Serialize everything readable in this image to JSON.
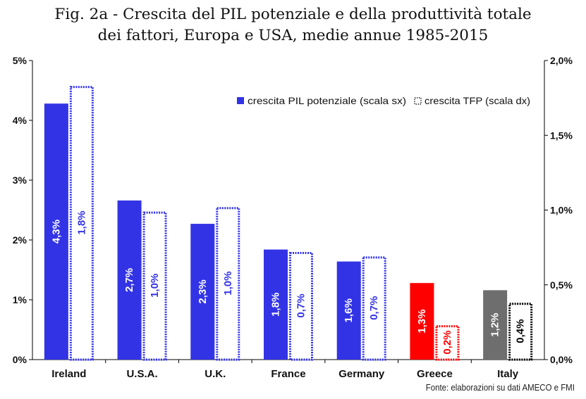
{
  "title_line1": "Fig. 2a - Crescita del PIL potenziale e della produttività totale",
  "title_line2": "dei fattori, Europa e USA, medie annue 1985-2015",
  "source": "Fonte: elaborazioni su dati AMECO e FMI",
  "chart_data": {
    "type": "bar",
    "categories": [
      "Ireland",
      "U.S.A.",
      "U.K.",
      "France",
      "Germany",
      "Greece",
      "Italy"
    ],
    "series": [
      {
        "name": "crescita PIL potenziale (scala sx)",
        "axis": "left",
        "values": [
          4.28,
          2.66,
          2.27,
          1.84,
          1.64,
          1.28,
          1.16
        ],
        "labels": [
          "4,3%",
          "2,7%",
          "2,3%",
          "1,8%",
          "1,6%",
          "1,3%",
          "1,2%"
        ],
        "style": "solid",
        "colors": [
          "#3333e6",
          "#3333e6",
          "#3333e6",
          "#3333e6",
          "#3333e6",
          "#ff0000",
          "#6e6e6e"
        ]
      },
      {
        "name": "crescita TFP (scala dx)",
        "axis": "right",
        "values": [
          1.83,
          0.99,
          1.02,
          0.72,
          0.69,
          0.23,
          0.38
        ],
        "labels": [
          "1,8%",
          "1,0%",
          "1,0%",
          "0,7%",
          "0,7%",
          "0,2%",
          "0,4%"
        ],
        "style": "dotted-outline",
        "colors": [
          "#3333e6",
          "#3333e6",
          "#3333e6",
          "#3333e6",
          "#3333e6",
          "#ff0000",
          "#000000"
        ]
      }
    ],
    "left_axis": {
      "min": 0,
      "max": 5,
      "ticks": [
        0,
        1,
        2,
        3,
        4,
        5
      ],
      "tick_labels": [
        "0%",
        "1%",
        "2%",
        "3%",
        "4%",
        "5%"
      ]
    },
    "right_axis": {
      "min": 0,
      "max": 2,
      "ticks": [
        0,
        0.5,
        1,
        1.5,
        2
      ],
      "tick_labels": [
        "0,0%",
        "0,5%",
        "1,0%",
        "1,5%",
        "2,0%"
      ]
    },
    "legend_position": "top-right",
    "grid": false
  }
}
